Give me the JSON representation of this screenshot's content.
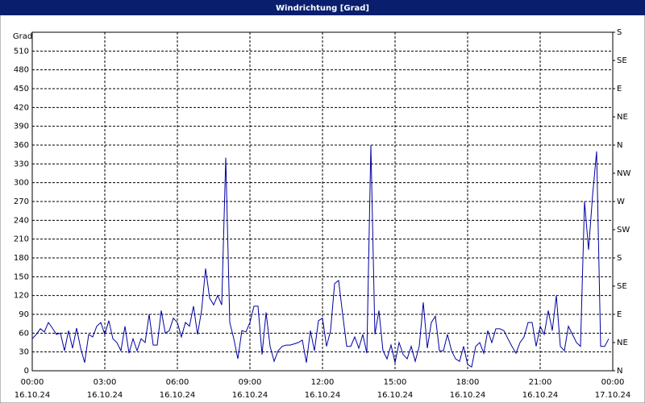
{
  "chart_data": {
    "type": "line",
    "title": "Windrichtung [Grad]",
    "y_label": "Grad",
    "x": [
      0,
      10,
      20,
      30,
      40,
      50,
      60,
      70,
      80,
      90,
      100,
      110,
      120,
      130,
      140,
      150,
      160,
      170,
      180,
      190,
      200,
      210,
      220,
      230,
      240,
      250,
      260,
      270,
      280,
      290,
      300,
      310,
      320,
      330,
      340,
      350,
      360,
      370,
      380,
      390,
      400,
      410,
      420,
      430,
      440,
      450,
      460,
      470,
      480,
      490,
      500,
      510,
      520,
      530,
      540,
      550,
      560,
      570,
      580,
      590,
      600,
      610,
      620,
      630,
      640,
      650,
      660,
      670,
      680,
      690,
      700,
      710,
      720,
      730,
      740,
      750,
      760,
      770,
      780,
      790,
      800,
      810,
      820,
      830,
      840,
      850,
      860,
      870,
      880,
      890,
      900,
      910,
      920,
      930,
      940,
      950,
      960,
      970,
      980,
      990,
      1000,
      1010,
      1020,
      1030,
      1040,
      1050,
      1060,
      1070,
      1080,
      1090,
      1100,
      1110,
      1120,
      1130,
      1140,
      1150,
      1160,
      1170,
      1180,
      1190,
      1200,
      1210,
      1220,
      1230,
      1240,
      1250,
      1260,
      1270,
      1280,
      1290,
      1300,
      1310,
      1320,
      1330,
      1340,
      1350,
      1360,
      1370,
      1380,
      1390,
      1400,
      1410,
      1420,
      1430
    ],
    "series": [
      {
        "color": "#0000a0",
        "values": [
          51,
          58,
          67,
          62,
          77,
          68,
          58,
          60,
          32,
          64,
          36,
          68,
          36,
          13,
          58,
          54,
          71,
          77,
          58,
          80,
          51,
          45,
          32,
          71,
          28,
          51,
          32,
          51,
          45,
          90,
          41,
          41,
          96,
          60,
          64,
          84,
          77,
          54,
          77,
          71,
          103,
          58,
          96,
          163,
          116,
          105,
          120,
          105,
          340,
          77,
          51,
          19,
          64,
          62,
          77,
          103,
          103,
          26,
          93,
          39,
          15,
          32,
          39,
          41,
          41,
          43,
          45,
          49,
          13,
          64,
          32,
          80,
          84,
          39,
          64,
          139,
          144,
          90,
          39,
          39,
          54,
          36,
          58,
          28,
          360,
          58,
          96,
          32,
          19,
          41,
          13,
          45,
          26,
          19,
          39,
          15,
          39,
          109,
          36,
          77,
          87,
          32,
          32,
          58,
          32,
          19,
          15,
          39,
          10,
          6,
          39,
          45,
          28,
          64,
          45,
          67,
          67,
          64,
          51,
          39,
          28,
          45,
          54,
          77,
          77,
          39,
          71,
          58,
          96,
          64,
          120,
          39,
          32,
          71,
          58,
          45,
          39,
          270,
          193,
          280,
          350,
          39,
          39,
          51
        ]
      }
    ],
    "xlim": [
      0,
      1440
    ],
    "xticks": [
      {
        "value": 0,
        "label": "00:00"
      },
      {
        "value": 180,
        "label": "03:00"
      },
      {
        "value": 360,
        "label": "06:00"
      },
      {
        "value": 540,
        "label": "09:00"
      },
      {
        "value": 720,
        "label": "12:00"
      },
      {
        "value": 900,
        "label": "15:00"
      },
      {
        "value": 1080,
        "label": "18:00"
      },
      {
        "value": 1260,
        "label": "21:00"
      },
      {
        "value": 1440,
        "label": "00:00"
      }
    ],
    "xtick_dates": [
      "16.10.24",
      "16.10.24",
      "16.10.24",
      "16.10.24",
      "16.10.24",
      "16.10.24",
      "16.10.24",
      "16.10.24",
      "17.10.24"
    ],
    "ylim": [
      0,
      540
    ],
    "yticks": [
      0,
      30,
      60,
      90,
      120,
      150,
      180,
      210,
      240,
      270,
      300,
      330,
      360,
      390,
      420,
      450,
      480,
      510
    ],
    "y2lim": [
      0,
      540
    ],
    "y2ticks": [
      {
        "value": 0,
        "label": "N"
      },
      {
        "value": 45,
        "label": "NE"
      },
      {
        "value": 90,
        "label": "E"
      },
      {
        "value": 135,
        "label": "SE"
      },
      {
        "value": 180,
        "label": "S"
      },
      {
        "value": 225,
        "label": "SW"
      },
      {
        "value": 270,
        "label": "W"
      },
      {
        "value": 315,
        "label": "NW"
      },
      {
        "value": 360,
        "label": "N"
      },
      {
        "value": 405,
        "label": "NE"
      },
      {
        "value": 450,
        "label": "E"
      },
      {
        "value": 495,
        "label": "SE"
      },
      {
        "value": 540,
        "label": "S"
      }
    ],
    "grid": true
  }
}
